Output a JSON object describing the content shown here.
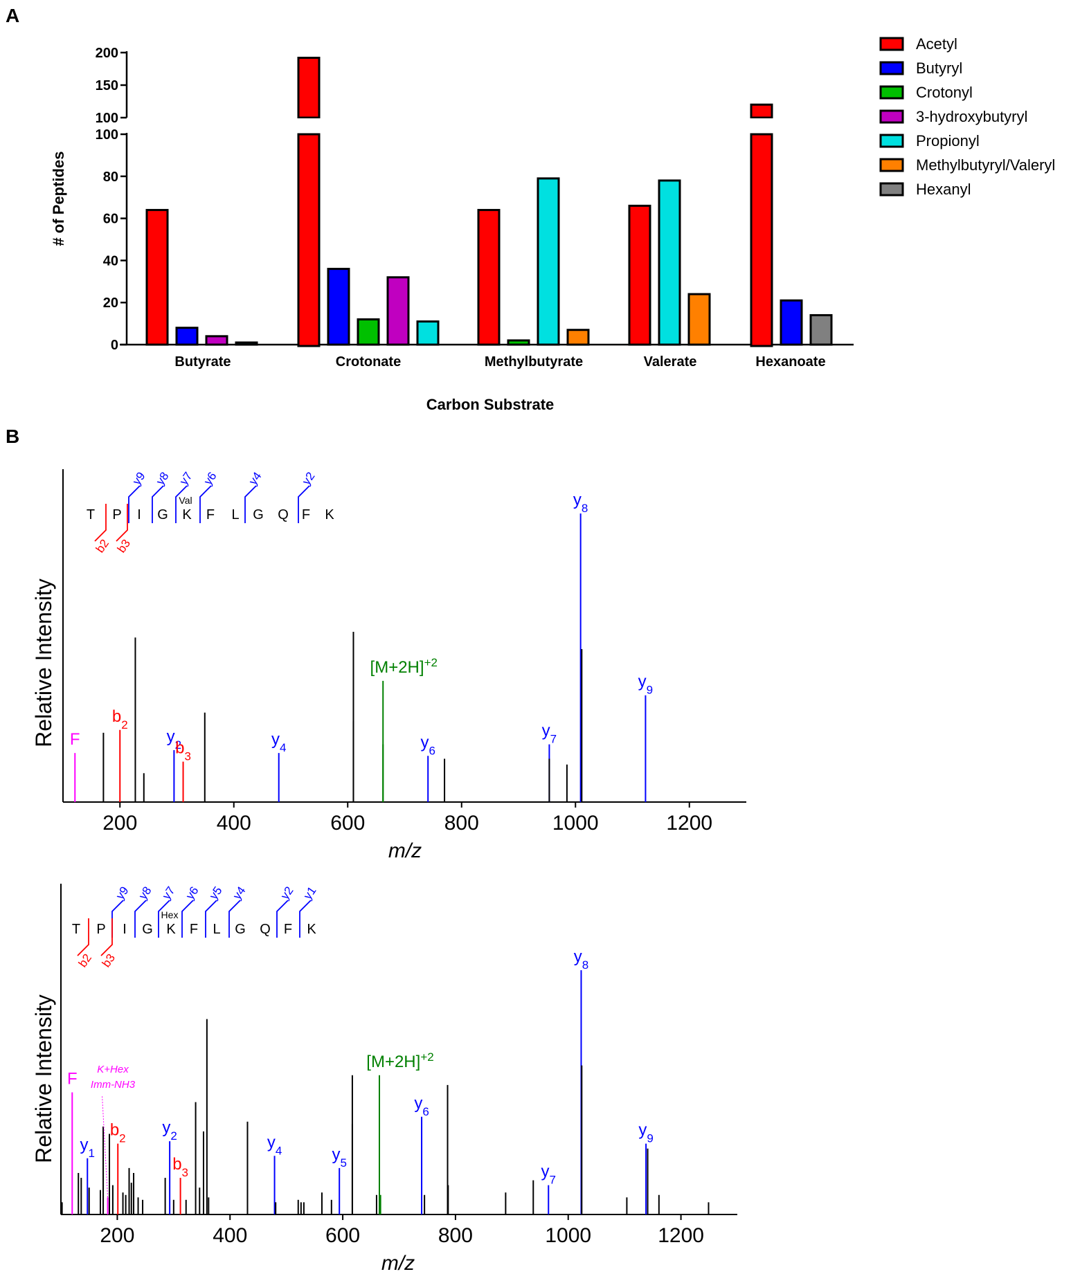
{
  "panels": {
    "a": "A",
    "b": "B"
  },
  "chart_data": [
    {
      "type": "bar",
      "title": "",
      "xlabel": "Carbon Substrate",
      "ylabel": "# of Peptides",
      "ylim": [
        0,
        200
      ],
      "axis_break": [
        100,
        100
      ],
      "yticks_lower": [
        0,
        20,
        40,
        60,
        80,
        100
      ],
      "yticks_upper": [
        100,
        150,
        200
      ],
      "legend_position": "top-right",
      "categories": [
        "Butyrate",
        "Crotonate",
        "Methylbutyrate",
        "Valerate",
        "Hexanoate"
      ],
      "series": [
        {
          "name": "Acetyl",
          "color": "#ff0000",
          "values": [
            64,
            192,
            64,
            66,
            120
          ]
        },
        {
          "name": "Butyryl",
          "color": "#0000ff",
          "values": [
            8,
            36,
            null,
            null,
            21
          ]
        },
        {
          "name": "Crotonyl",
          "color": "#00c000",
          "values": [
            null,
            12,
            2,
            null,
            null
          ]
        },
        {
          "name": "3-hydroxybutyryl",
          "color": "#c000c0",
          "values": [
            4,
            32,
            null,
            null,
            null
          ]
        },
        {
          "name": "Propionyl",
          "color": "#00e0e0",
          "values": [
            1,
            11,
            79,
            78,
            null
          ]
        },
        {
          "name": "Methylbutyryl/Valeryl",
          "color": "#ff8000",
          "values": [
            null,
            null,
            7,
            24,
            null
          ]
        },
        {
          "name": "Hexanyl",
          "color": "#808080",
          "values": [
            null,
            null,
            null,
            null,
            14
          ]
        }
      ],
      "bars": [
        {
          "category": "Butyrate",
          "series": [
            "Acetyl",
            "Butyryl",
            "3-hydroxybutyryl",
            "Propionyl"
          ]
        },
        {
          "category": "Crotonate",
          "series": [
            "Acetyl",
            "Butyryl",
            "Crotonyl",
            "3-hydroxybutyryl",
            "Propionyl"
          ]
        },
        {
          "category": "Methylbutyrate",
          "series": [
            "Acetyl",
            "Crotonyl",
            "Propionyl",
            "Methylbutyryl/Valeryl"
          ]
        },
        {
          "category": "Valerate",
          "series": [
            "Acetyl",
            "Propionyl",
            "Methylbutyryl/Valeryl"
          ]
        },
        {
          "category": "Hexanoate",
          "series": [
            "Acetyl",
            "Butyryl",
            "Hexanyl"
          ]
        }
      ]
    },
    {
      "type": "spectrum",
      "xlabel": "m/z",
      "ylabel": "Relative Intensity",
      "xlim": [
        100,
        1300
      ],
      "xticks": [
        200,
        400,
        600,
        800,
        1000,
        1200
      ],
      "peptide": {
        "residues": [
          "T",
          "P",
          "I",
          "G",
          "K",
          "F",
          "L",
          "G",
          "Q",
          "F",
          "K"
        ],
        "modification": "Val",
        "y_ions": [
          "y9",
          "y8",
          "y7",
          "y6",
          "y4",
          "y2"
        ],
        "b_ions": [
          "b2",
          "b3"
        ]
      },
      "peaks": [
        {
          "mz": 121,
          "intensity": 0.17,
          "color": "#ff00ff",
          "label": "F"
        },
        {
          "mz": 171,
          "intensity": 0.24
        },
        {
          "mz": 200,
          "intensity": 0.25,
          "color": "#ff0000",
          "label": "b",
          "sub": "2"
        },
        {
          "mz": 227,
          "intensity": 0.57
        },
        {
          "mz": 242,
          "intensity": 0.1
        },
        {
          "mz": 295,
          "intensity": 0.18,
          "color": "#0000ff",
          "label": "y",
          "sub": "2"
        },
        {
          "mz": 311,
          "intensity": 0.14,
          "color": "#ff0000",
          "label": "b",
          "sub": "3"
        },
        {
          "mz": 349,
          "intensity": 0.31
        },
        {
          "mz": 479,
          "intensity": 0.17,
          "color": "#0000ff",
          "label": "y",
          "sub": "4"
        },
        {
          "mz": 610,
          "intensity": 0.59
        },
        {
          "mz": 610,
          "intensity": 0.28
        },
        {
          "mz": 662,
          "intensity": 0.42,
          "color": "#008000",
          "label": "[M+2H]",
          "sup": "+2"
        },
        {
          "mz": 662,
          "intensity": 0.2,
          "color": "#008000"
        },
        {
          "mz": 741,
          "intensity": 0.16,
          "color": "#0000ff",
          "label": "y",
          "sub": "6"
        },
        {
          "mz": 770,
          "intensity": 0.15
        },
        {
          "mz": 954,
          "intensity": 0.2,
          "color": "#0000ff",
          "label": "y",
          "sub": "7"
        },
        {
          "mz": 954,
          "intensity": 0.15
        },
        {
          "mz": 985,
          "intensity": 0.13
        },
        {
          "mz": 1009,
          "intensity": 1.0,
          "color": "#0000ff",
          "label": "y",
          "sub": "8"
        },
        {
          "mz": 1011,
          "intensity": 0.53
        },
        {
          "mz": 1123,
          "intensity": 0.37,
          "color": "#0000ff",
          "label": "y",
          "sub": "9"
        }
      ]
    },
    {
      "type": "spectrum",
      "xlabel": "m/z",
      "ylabel": "Relative Intensity",
      "xlim": [
        100,
        1300
      ],
      "xticks": [
        200,
        400,
        600,
        800,
        1000,
        1200
      ],
      "annotation": [
        "K+Hex",
        "Imm-NH3"
      ],
      "peptide": {
        "residues": [
          "T",
          "P",
          "I",
          "G",
          "K",
          "F",
          "L",
          "G",
          "Q",
          "F",
          "K"
        ],
        "modification": "Hex",
        "y_ions": [
          "y9",
          "y8",
          "y7",
          "y6",
          "y5",
          "y4",
          "y2",
          "y1"
        ],
        "b_ions": [
          "b2",
          "b3"
        ]
      },
      "peaks": [
        {
          "mz": 102,
          "intensity": 0.05
        },
        {
          "mz": 120,
          "intensity": 0.5,
          "color": "#ff00ff",
          "label": "F"
        },
        {
          "mz": 131,
          "intensity": 0.17
        },
        {
          "mz": 136,
          "intensity": 0.15
        },
        {
          "mz": 147,
          "intensity": 0.23,
          "color": "#0000ff",
          "label": "y",
          "sub": "1"
        },
        {
          "mz": 150,
          "intensity": 0.11
        },
        {
          "mz": 170,
          "intensity": 0.1
        },
        {
          "mz": 175,
          "intensity": 0.36
        },
        {
          "mz": 183,
          "intensity": 0.07,
          "color": "#ff00ff"
        },
        {
          "mz": 186,
          "intensity": 0.33
        },
        {
          "mz": 192,
          "intensity": 0.12
        },
        {
          "mz": 201,
          "intensity": 0.29,
          "color": "#ff0000",
          "label": "b",
          "sub": "2"
        },
        {
          "mz": 210,
          "intensity": 0.09
        },
        {
          "mz": 215,
          "intensity": 0.08
        },
        {
          "mz": 221,
          "intensity": 0.19
        },
        {
          "mz": 225,
          "intensity": 0.13
        },
        {
          "mz": 229,
          "intensity": 0.17
        },
        {
          "mz": 237,
          "intensity": 0.07
        },
        {
          "mz": 245,
          "intensity": 0.06
        },
        {
          "mz": 285,
          "intensity": 0.15
        },
        {
          "mz": 293,
          "intensity": 0.3,
          "color": "#0000ff",
          "label": "y",
          "sub": "2"
        },
        {
          "mz": 300,
          "intensity": 0.06
        },
        {
          "mz": 312,
          "intensity": 0.15,
          "color": "#ff0000",
          "label": "b",
          "sub": "3"
        },
        {
          "mz": 322,
          "intensity": 0.06
        },
        {
          "mz": 339,
          "intensity": 0.46
        },
        {
          "mz": 346,
          "intensity": 0.11
        },
        {
          "mz": 353,
          "intensity": 0.34
        },
        {
          "mz": 359,
          "intensity": 0.8
        },
        {
          "mz": 362,
          "intensity": 0.07
        },
        {
          "mz": 431,
          "intensity": 0.38
        },
        {
          "mz": 479,
          "intensity": 0.24,
          "color": "#0000ff",
          "label": "y",
          "sub": "4"
        },
        {
          "mz": 481,
          "intensity": 0.05
        },
        {
          "mz": 521,
          "intensity": 0.06
        },
        {
          "mz": 526,
          "intensity": 0.05
        },
        {
          "mz": 531,
          "intensity": 0.05
        },
        {
          "mz": 563,
          "intensity": 0.09
        },
        {
          "mz": 580,
          "intensity": 0.06
        },
        {
          "mz": 594,
          "intensity": 0.19,
          "color": "#0000ff",
          "label": "y",
          "sub": "5"
        },
        {
          "mz": 617,
          "intensity": 0.57
        },
        {
          "mz": 617,
          "intensity": 0.37
        },
        {
          "mz": 660,
          "intensity": 0.08
        },
        {
          "mz": 665,
          "intensity": 0.57,
          "color": "#008000",
          "label": "[M+2H]",
          "sup": "+2"
        },
        {
          "mz": 667,
          "intensity": 0.08,
          "color": "#008000"
        },
        {
          "mz": 740,
          "intensity": 0.4,
          "color": "#0000ff",
          "label": "y",
          "sub": "6"
        },
        {
          "mz": 745,
          "intensity": 0.08
        },
        {
          "mz": 786,
          "intensity": 0.53
        },
        {
          "mz": 787,
          "intensity": 0.12
        },
        {
          "mz": 889,
          "intensity": 0.09
        },
        {
          "mz": 938,
          "intensity": 0.14
        },
        {
          "mz": 965,
          "intensity": 0.12,
          "color": "#0000ff",
          "label": "y",
          "sub": "7"
        },
        {
          "mz": 1023,
          "intensity": 1.0,
          "color": "#0000ff",
          "label": "y",
          "sub": "8"
        },
        {
          "mz": 1024,
          "intensity": 0.61
        },
        {
          "mz": 1104,
          "intensity": 0.07
        },
        {
          "mz": 1138,
          "intensity": 0.29,
          "color": "#0000ff",
          "label": "y",
          "sub": "9"
        },
        {
          "mz": 1141,
          "intensity": 0.27
        },
        {
          "mz": 1161,
          "intensity": 0.08
        },
        {
          "mz": 1249,
          "intensity": 0.05
        }
      ]
    }
  ]
}
